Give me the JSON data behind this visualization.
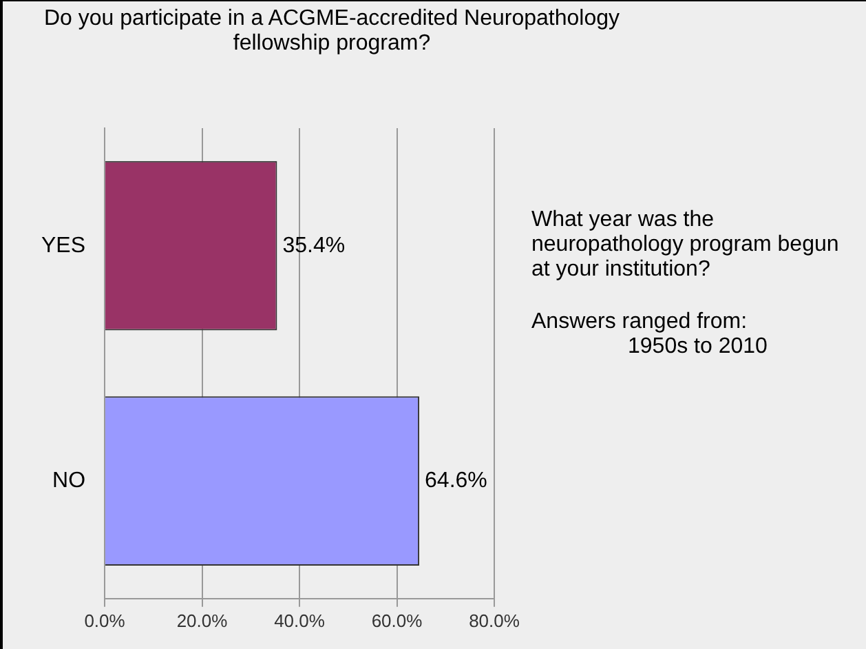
{
  "chart_data": {
    "type": "bar",
    "orientation": "horizontal",
    "title": "Do you participate in a ACGME-accredited Neuropathology fellowship program?",
    "categories": [
      "YES",
      "NO"
    ],
    "values": [
      35.4,
      64.6
    ],
    "colors": [
      "#993366",
      "#9999ff"
    ],
    "value_labels": [
      "35.4%",
      "64.6%"
    ],
    "xlim": [
      0,
      80
    ],
    "xticks": [
      {
        "value": 0,
        "label": "0.0%"
      },
      {
        "value": 20,
        "label": "20.0%"
      },
      {
        "value": 40,
        "label": "40.0%"
      },
      {
        "value": 60,
        "label": "60.0%"
      },
      {
        "value": 80,
        "label": "80.0%"
      }
    ],
    "grid": "x",
    "annotations": [
      "What year was the neuropathology program begun at your institution?",
      "Answers ranged from:\n1950s to 2010"
    ]
  }
}
